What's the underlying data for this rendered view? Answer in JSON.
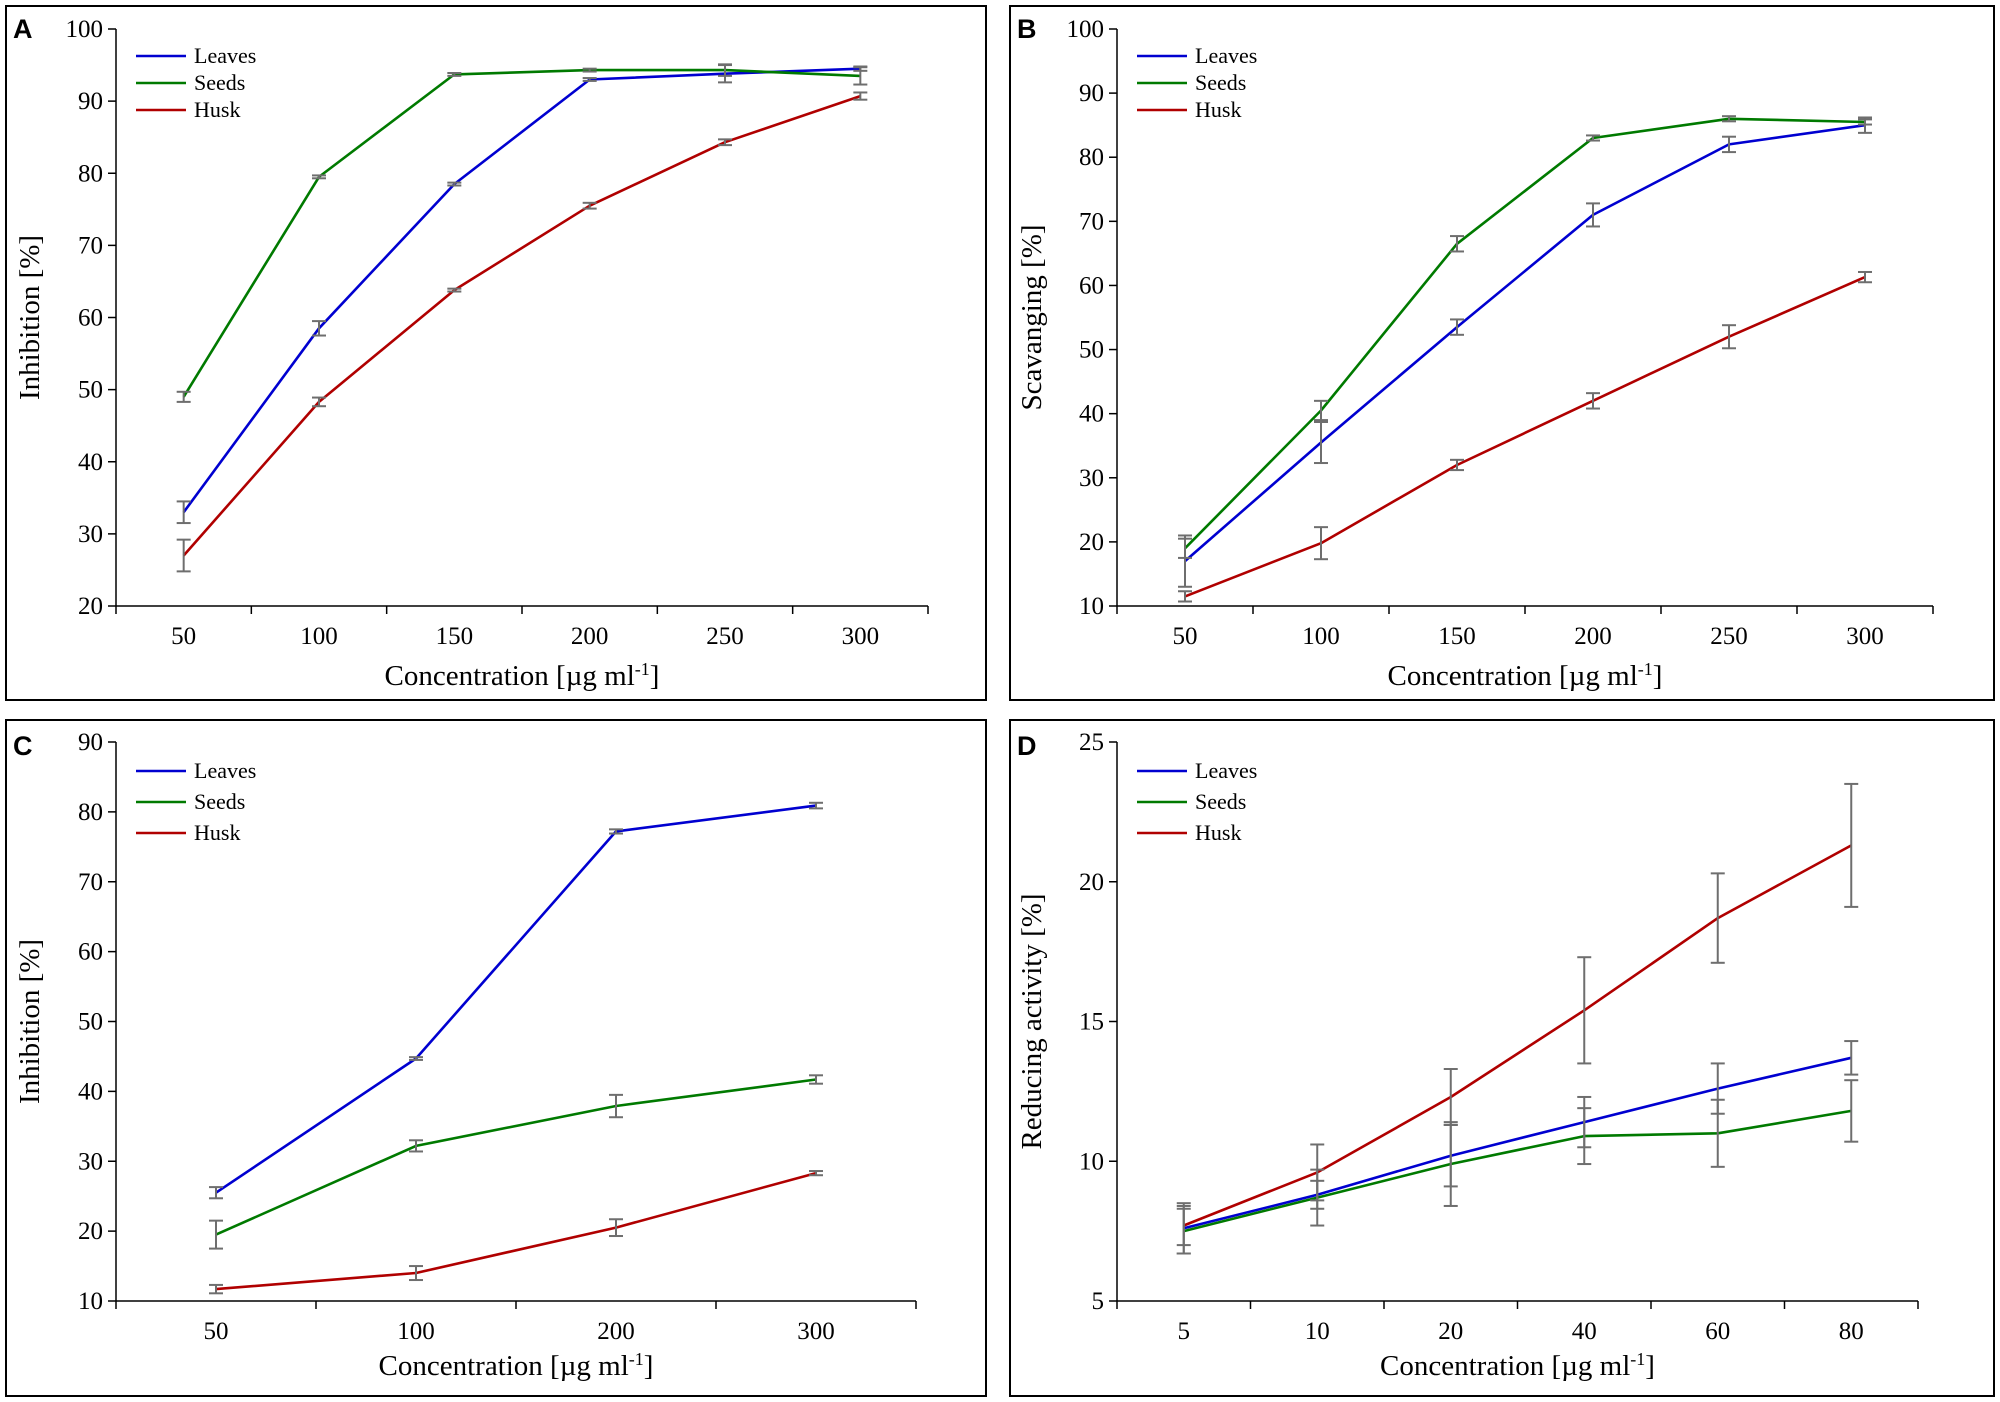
{
  "colors": {
    "leaves": "#0000d0",
    "seeds": "#007a00",
    "husk": "#b00000",
    "errorbar": "#6e6e6e"
  },
  "chart_data": [
    {
      "panel": "A",
      "type": "line",
      "categories": [
        "50",
        "100",
        "150",
        "200",
        "250",
        "300"
      ],
      "ylabel": "Inhibition [%]",
      "xlabel_main": "Concentration [µg ml",
      "xlabel_sup": "-1",
      "xlabel_end": "]",
      "ylim": [
        20,
        100
      ],
      "yticks": [
        20,
        30,
        40,
        50,
        60,
        70,
        80,
        90,
        100
      ],
      "legend_position": "top-left",
      "series": [
        {
          "name": "Leaves",
          "color": "#0000d0",
          "values": [
            33,
            58.5,
            78.5,
            93,
            93.8,
            94.5
          ],
          "errors": [
            1.5,
            1.0,
            0.2,
            0.2,
            1.2,
            0.3
          ]
        },
        {
          "name": "Seeds",
          "color": "#007a00",
          "values": [
            49,
            79.5,
            93.7,
            94.3,
            94.3,
            93.5
          ],
          "errors": [
            0.7,
            0.2,
            0.2,
            0.2,
            0.8,
            1.2
          ]
        },
        {
          "name": "Husk",
          "color": "#b00000",
          "values": [
            27,
            48.3,
            63.8,
            75.5,
            84.3,
            90.7
          ],
          "errors": [
            2.2,
            0.6,
            0.2,
            0.4,
            0.4,
            0.5
          ]
        }
      ]
    },
    {
      "panel": "B",
      "type": "line",
      "categories": [
        "50",
        "100",
        "150",
        "200",
        "250",
        "300"
      ],
      "ylabel": "Scavanging [%]",
      "xlabel_main": "Concentration [µg ml",
      "xlabel_sup": "-1",
      "xlabel_end": "]",
      "ylim": [
        10,
        100
      ],
      "yticks": [
        10,
        20,
        30,
        40,
        50,
        60,
        70,
        80,
        90,
        100
      ],
      "legend_position": "top-left",
      "series": [
        {
          "name": "Leaves",
          "color": "#0000d0",
          "values": [
            17,
            35.5,
            53.5,
            71,
            82,
            85
          ],
          "errors": [
            4.0,
            3.2,
            1.2,
            1.8,
            1.2,
            1.2
          ]
        },
        {
          "name": "Seeds",
          "color": "#007a00",
          "values": [
            19,
            40.5,
            66.5,
            83,
            86,
            85.5
          ],
          "errors": [
            1.5,
            1.5,
            1.2,
            0.4,
            0.4,
            0.4
          ]
        },
        {
          "name": "Husk",
          "color": "#b00000",
          "values": [
            11.5,
            19.8,
            32,
            42,
            52,
            61.3
          ],
          "errors": [
            0.8,
            2.5,
            0.8,
            1.2,
            1.8,
            0.8
          ]
        }
      ]
    },
    {
      "panel": "C",
      "type": "line",
      "categories": [
        "50",
        "100",
        "200",
        "300"
      ],
      "ylabel": "Inhibition [%]",
      "xlabel_main": "Concentration [µg ml",
      "xlabel_sup": "-1",
      "xlabel_end": "]",
      "ylim": [
        10,
        90
      ],
      "yticks": [
        10,
        20,
        30,
        40,
        50,
        60,
        70,
        80,
        90
      ],
      "legend_position": "top-left",
      "series": [
        {
          "name": "Leaves",
          "color": "#0000d0",
          "values": [
            25.5,
            44.7,
            77.2,
            80.9
          ],
          "errors": [
            0.8,
            0.2,
            0.3,
            0.4
          ]
        },
        {
          "name": "Seeds",
          "color": "#007a00",
          "values": [
            19.5,
            32.2,
            37.9,
            41.7
          ],
          "errors": [
            2.0,
            0.8,
            1.6,
            0.6
          ]
        },
        {
          "name": "Husk",
          "color": "#b00000",
          "values": [
            11.7,
            14.0,
            20.5,
            28.3
          ],
          "errors": [
            0.6,
            1.0,
            1.2,
            0.3
          ]
        }
      ]
    },
    {
      "panel": "D",
      "type": "line",
      "categories": [
        "5",
        "10",
        "20",
        "40",
        "60",
        "80"
      ],
      "ylabel": "Reducing activity [%]",
      "xlabel_main": "Concentration [µg ml",
      "xlabel_sup": "-1",
      "xlabel_end": "]",
      "ylim": [
        5,
        25
      ],
      "yticks": [
        5,
        10,
        15,
        20,
        25
      ],
      "legend_position": "top-left",
      "series": [
        {
          "name": "Leaves",
          "color": "#0000d0",
          "values": [
            7.6,
            8.8,
            10.2,
            11.4,
            12.6,
            13.7
          ],
          "errors": [
            0.9,
            0.5,
            1.1,
            0.9,
            0.9,
            0.6
          ]
        },
        {
          "name": "Seeds",
          "color": "#007a00",
          "values": [
            7.5,
            8.7,
            9.9,
            10.9,
            11.0,
            11.8
          ],
          "errors": [
            0.8,
            1.0,
            1.5,
            1.0,
            1.2,
            1.1
          ]
        },
        {
          "name": "Husk",
          "color": "#b00000",
          "values": [
            7.7,
            9.6,
            12.3,
            15.4,
            18.7,
            21.3
          ],
          "errors": [
            0.7,
            1.0,
            1.0,
            1.9,
            1.6,
            2.2
          ]
        }
      ]
    }
  ]
}
